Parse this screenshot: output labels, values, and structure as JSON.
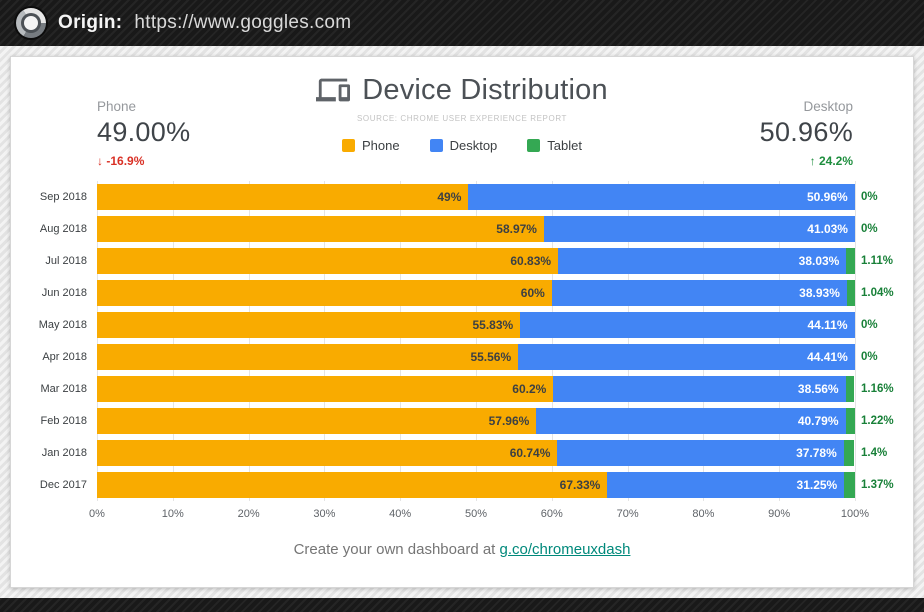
{
  "browser": {
    "origin_label": "Origin:",
    "origin_url": "https://www.goggles.com"
  },
  "header": {
    "title": "Device Distribution",
    "subtitle": "SOURCE: CHROME USER EXPERIENCE REPORT"
  },
  "stats": {
    "phone": {
      "label": "Phone",
      "value": "49.00%",
      "arrow": "↓",
      "delta": "-16.9%",
      "delta_color": "#d93025"
    },
    "desktop": {
      "label": "Desktop",
      "value": "50.96%",
      "arrow": "↑",
      "delta": "24.2%",
      "delta_color": "#1e8e3e"
    }
  },
  "legend": [
    {
      "label": "Phone",
      "color": "#f9ab00"
    },
    {
      "label": "Desktop",
      "color": "#4285f4"
    },
    {
      "label": "Tablet",
      "color": "#34a853"
    }
  ],
  "chart_data": {
    "type": "bar",
    "orientation": "horizontal",
    "stacked": true,
    "grid": true,
    "xlim": [
      0,
      100
    ],
    "x_ticks": [
      "0%",
      "10%",
      "20%",
      "30%",
      "40%",
      "50%",
      "60%",
      "70%",
      "80%",
      "90%",
      "100%"
    ],
    "categories": [
      "Sep 2018",
      "Aug 2018",
      "Jul 2018",
      "Jun 2018",
      "May 2018",
      "Apr 2018",
      "Mar 2018",
      "Feb 2018",
      "Jan 2018",
      "Dec 2017"
    ],
    "series": [
      {
        "name": "Phone",
        "color": "#f9ab00",
        "label_color": "#3c4043",
        "label_outside": false,
        "values": [
          49,
          58.97,
          60.83,
          60,
          55.83,
          55.56,
          60.2,
          57.96,
          60.74,
          67.33
        ],
        "labels": [
          "49%",
          "58.97%",
          "60.83%",
          "60%",
          "55.83%",
          "55.56%",
          "60.2%",
          "57.96%",
          "60.74%",
          "67.33%"
        ]
      },
      {
        "name": "Desktop",
        "color": "#4285f4",
        "label_color": "#ffffff",
        "label_outside": false,
        "values": [
          50.96,
          41.03,
          38.03,
          38.93,
          44.11,
          44.41,
          38.56,
          40.79,
          37.78,
          31.25
        ],
        "labels": [
          "50.96%",
          "41.03%",
          "38.03%",
          "38.93%",
          "44.11%",
          "44.41%",
          "38.56%",
          "40.79%",
          "37.78%",
          "31.25%"
        ]
      },
      {
        "name": "Tablet",
        "color": "#34a853",
        "label_color": "#188038",
        "label_outside": true,
        "values": [
          0,
          0,
          1.11,
          1.04,
          0,
          0,
          1.16,
          1.22,
          1.4,
          1.37
        ],
        "labels": [
          "0%",
          "0%",
          "1.11%",
          "1.04%",
          "0%",
          "0%",
          "1.16%",
          "1.22%",
          "1.4%",
          "1.37%"
        ]
      }
    ]
  },
  "footer": {
    "text": "Create your own dashboard at ",
    "link": "g.co/chromeuxdash",
    "link_color": "#00897b"
  }
}
